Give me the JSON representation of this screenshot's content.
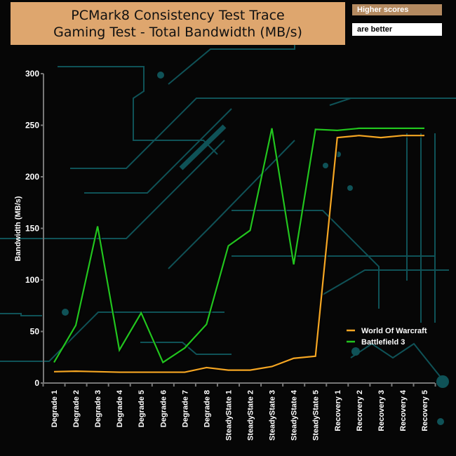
{
  "header": {
    "title_line1": "PCMark8 Consistency Test Trace",
    "title_line2": "Gaming Test - Total Bandwidth (MB/s)",
    "badge_top": "Higher scores",
    "badge_bottom": "are better"
  },
  "chart_data": {
    "type": "line",
    "title": "PCMark8 Consistency Test Trace - Gaming Test - Total Bandwidth (MB/s)",
    "xlabel": "",
    "ylabel": "Bandwidth (MB/s)",
    "ylim": [
      0,
      300
    ],
    "yticks": [
      0,
      50,
      100,
      150,
      200,
      250,
      300
    ],
    "categories": [
      "Degrade 1",
      "Degrade 2",
      "Degrade 3",
      "Degrade 4",
      "Degrade 5",
      "Degrade 6",
      "Degrade 7",
      "Degrade 8",
      "SteadyState 1",
      "SteadyState 2",
      "SteadyState 3",
      "SteadyState 4",
      "SteadyState 5",
      "Recovery 1",
      "Recovery 2",
      "Recovery 3",
      "Recovery 4",
      "Recovery 5"
    ],
    "legend_position": "bottom-right",
    "series": [
      {
        "name": "World Of Warcraft",
        "color": "#f5a623",
        "values": [
          11,
          11.5,
          11,
          10.5,
          10.5,
          10.5,
          10.5,
          15,
          12.5,
          12.5,
          16,
          24,
          26,
          238,
          240,
          238,
          240,
          240
        ]
      },
      {
        "name": "Battlefield 3",
        "color": "#22c41e",
        "values": [
          20,
          56,
          152,
          32,
          68,
          20,
          34,
          57,
          133,
          148,
          247,
          115,
          246,
          245,
          247,
          247,
          247,
          247
        ]
      }
    ]
  }
}
